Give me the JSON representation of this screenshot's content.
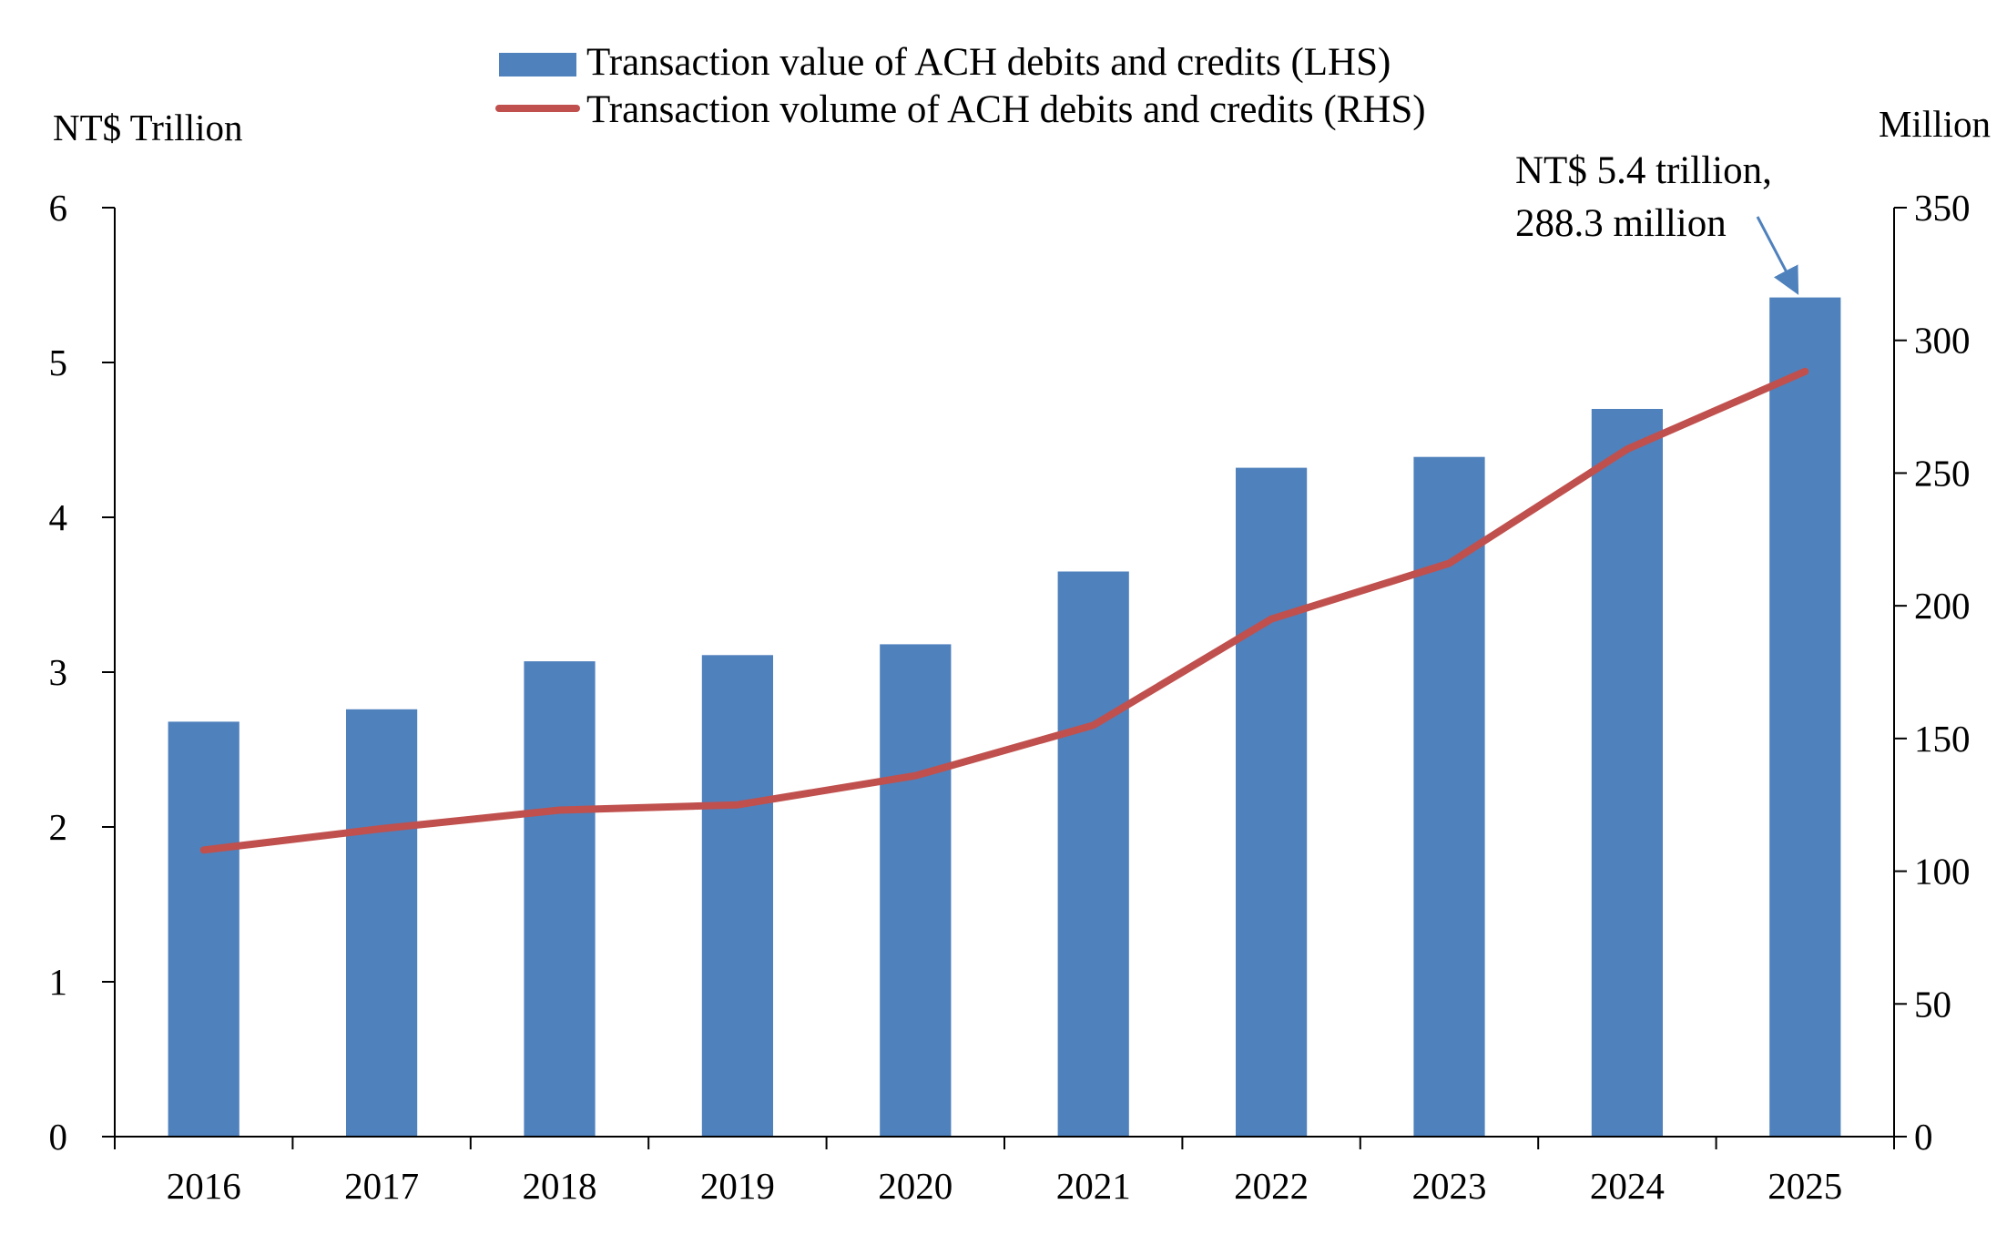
{
  "chart_data": {
    "type": "bar",
    "categories": [
      "2016",
      "2017",
      "2018",
      "2019",
      "2020",
      "2021",
      "2022",
      "2023",
      "2024",
      "2025"
    ],
    "series": [
      {
        "name": "Transaction value of ACH debits and credits (LHS)",
        "type": "bar",
        "axis": "left",
        "color": "#4F81BD",
        "values": [
          2.68,
          2.76,
          3.07,
          3.11,
          3.18,
          3.65,
          4.32,
          4.39,
          4.7,
          5.42
        ]
      },
      {
        "name": "Transaction volume of ACH debits and credits (RHS)",
        "type": "line",
        "axis": "right",
        "color": "#C0504D",
        "values": [
          108,
          116,
          123,
          125,
          136,
          155,
          195,
          216,
          259,
          288.3
        ]
      }
    ],
    "left_axis": {
      "label": "NT$ Trillion",
      "ylim": [
        0,
        6
      ],
      "ticks": [
        "0",
        "1",
        "2",
        "3",
        "4",
        "5",
        "6"
      ]
    },
    "right_axis": {
      "label": "Million",
      "ylim": [
        0,
        350
      ],
      "ticks": [
        "0",
        "50",
        "100",
        "150",
        "200",
        "250",
        "300",
        "350"
      ]
    },
    "annotation": {
      "line1": "NT$ 5.4 trillion,",
      "line2": "288.3 million",
      "target_category": "2025",
      "arrow_color": "#4F81BD"
    },
    "grid": false,
    "legend_position": "top-center"
  }
}
